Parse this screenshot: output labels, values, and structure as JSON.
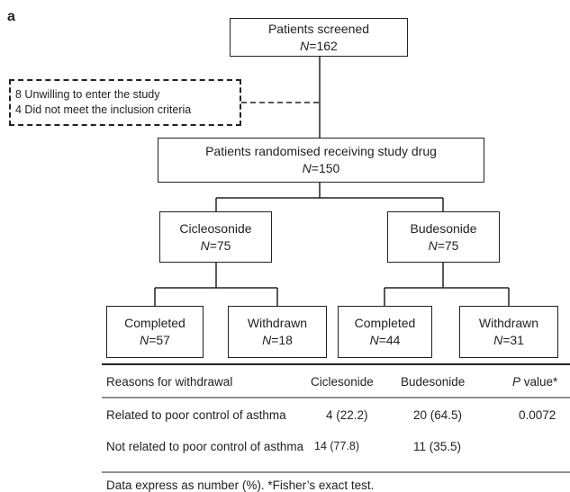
{
  "panel_label": "a",
  "nodes": [
    {
      "label": "Patients screened",
      "n": "N=162"
    },
    {
      "label": "Patients randomised receiving study drug",
      "n": "N=150"
    },
    {
      "label": "Cicleosonide",
      "n": "N=75"
    },
    {
      "label": "Budesonide",
      "n": "N=75"
    },
    {
      "label": "Completed",
      "n": "N=57"
    },
    {
      "label": "Withdrawn",
      "n": "N=18"
    },
    {
      "label": "Completed",
      "n": "N=44"
    },
    {
      "label": "Withdrawn",
      "n": "N=31"
    }
  ],
  "exclusions": [
    "8 Unwilling to enter the study",
    "4 Did not meet the inclusion  criteria"
  ],
  "table": {
    "header": [
      "Reasons for withdrawal",
      "Ciclesonide",
      "Budesonide",
      "P value*"
    ],
    "rows": [
      [
        "Related to poor control of asthma",
        "4 (22.2)",
        "20 (64.5)",
        "0.0072"
      ],
      [
        "Not related to poor control of asthma",
        "14 (77.8)",
        "11 (35.5)",
        null
      ]
    ],
    "footnote": "Data express as number (%). *Fisher’s exact test."
  }
}
